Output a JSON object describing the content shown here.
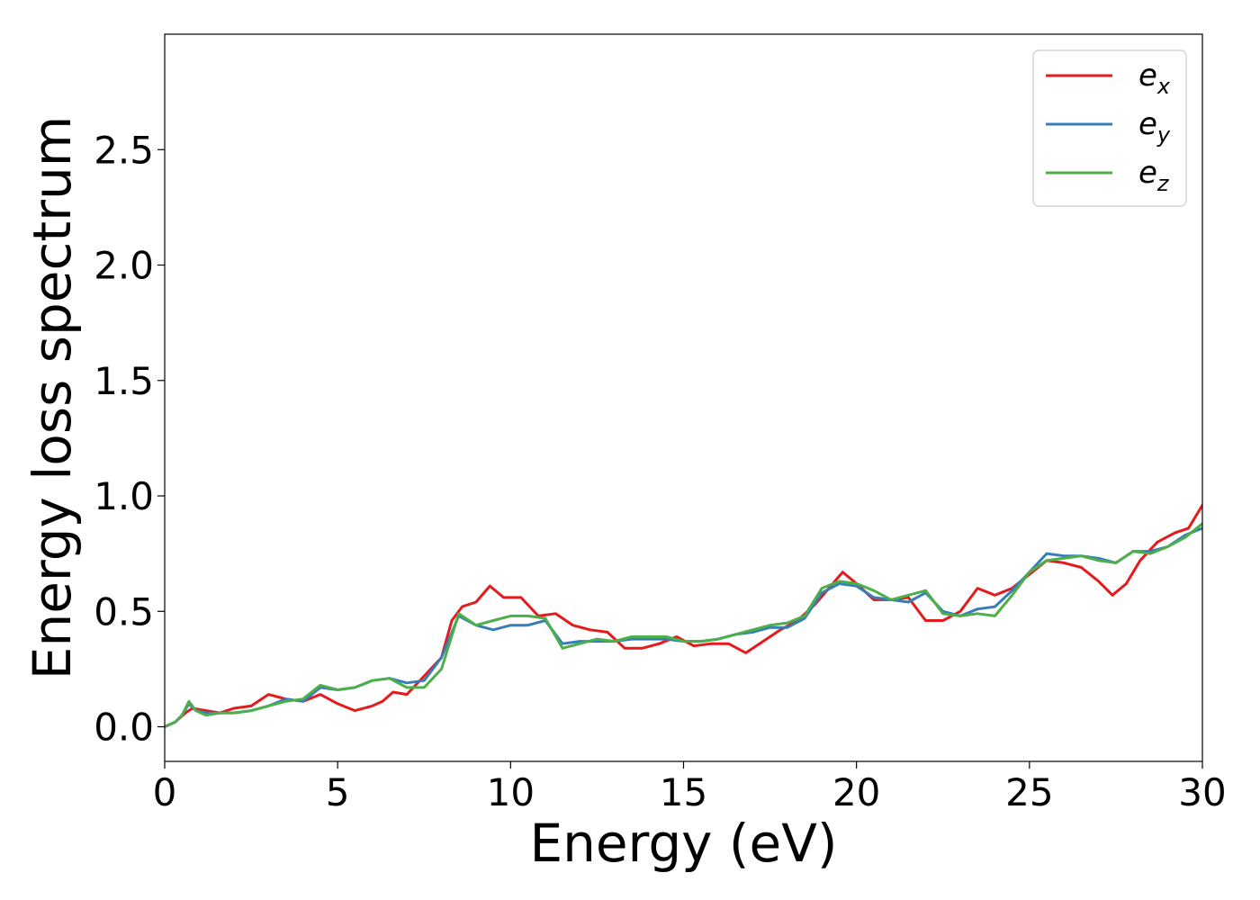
{
  "chart_data": {
    "type": "line",
    "xlabel": "Energy (eV)",
    "ylabel": "Energy loss spectrum",
    "xlim": [
      0,
      30
    ],
    "ylim": [
      -0.15,
      3.0
    ],
    "xticks": [
      "0",
      "5",
      "10",
      "15",
      "20",
      "25",
      "30"
    ],
    "yticks": [
      "0.0",
      "0.5",
      "1.0",
      "1.5",
      "2.0",
      "2.5"
    ],
    "grid": false,
    "legend_position": "top-right",
    "series": [
      {
        "name": "e_x",
        "label_base": "e",
        "label_sub": "x",
        "color": "#e41a1c",
        "x": [
          0,
          0.3,
          0.6,
          0.8,
          1.2,
          1.6,
          2.0,
          2.5,
          3.0,
          3.5,
          4.0,
          4.5,
          5.0,
          5.5,
          6.0,
          6.3,
          6.6,
          7.0,
          7.5,
          8.0,
          8.3,
          8.6,
          9.0,
          9.4,
          9.8,
          10.3,
          10.8,
          11.3,
          11.8,
          12.3,
          12.8,
          13.3,
          13.8,
          14.3,
          14.8,
          15.3,
          15.8,
          16.3,
          16.8,
          17.3,
          17.8,
          18.3,
          18.8,
          19.2,
          19.6,
          20.0,
          20.5,
          21.0,
          21.5,
          22.0,
          22.5,
          23.0,
          23.5,
          24.0,
          24.5,
          25.0,
          25.5,
          26.0,
          26.5,
          27.0,
          27.4,
          27.8,
          28.2,
          28.7,
          29.2,
          29.6,
          30.0
        ],
        "y": [
          0.0,
          0.02,
          0.06,
          0.08,
          0.07,
          0.06,
          0.08,
          0.09,
          0.14,
          0.12,
          0.11,
          0.14,
          0.1,
          0.07,
          0.09,
          0.11,
          0.15,
          0.14,
          0.22,
          0.3,
          0.46,
          0.52,
          0.54,
          0.61,
          0.56,
          0.56,
          0.48,
          0.49,
          0.44,
          0.42,
          0.41,
          0.34,
          0.34,
          0.36,
          0.39,
          0.35,
          0.36,
          0.36,
          0.32,
          0.37,
          0.42,
          0.46,
          0.53,
          0.6,
          0.67,
          0.62,
          0.55,
          0.55,
          0.56,
          0.46,
          0.46,
          0.5,
          0.6,
          0.57,
          0.6,
          0.66,
          0.72,
          0.71,
          0.69,
          0.63,
          0.57,
          0.62,
          0.72,
          0.8,
          0.84,
          0.86,
          0.96
        ]
      },
      {
        "name": "e_y",
        "label_base": "e",
        "label_sub": "y",
        "color": "#377eb8",
        "x": [
          0,
          0.3,
          0.5,
          0.7,
          0.9,
          1.2,
          1.6,
          2.0,
          2.5,
          3.0,
          3.5,
          4.0,
          4.5,
          5.0,
          5.5,
          6.0,
          6.5,
          7.0,
          7.5,
          8.0,
          8.5,
          9.0,
          9.5,
          10.0,
          10.5,
          11.0,
          11.5,
          12.0,
          12.5,
          13.0,
          13.5,
          14.0,
          14.5,
          15.0,
          15.5,
          16.0,
          16.5,
          17.0,
          17.5,
          18.0,
          18.5,
          19.0,
          19.5,
          20.0,
          20.5,
          21.0,
          21.5,
          22.0,
          22.5,
          23.0,
          23.5,
          24.0,
          24.5,
          25.0,
          25.5,
          26.0,
          26.5,
          27.0,
          27.5,
          28.0,
          28.5,
          29.0,
          29.5,
          30.0
        ],
        "y": [
          0.0,
          0.02,
          0.05,
          0.1,
          0.07,
          0.06,
          0.06,
          0.06,
          0.07,
          0.09,
          0.12,
          0.11,
          0.17,
          0.16,
          0.17,
          0.2,
          0.21,
          0.19,
          0.2,
          0.3,
          0.48,
          0.44,
          0.42,
          0.44,
          0.44,
          0.46,
          0.36,
          0.37,
          0.37,
          0.37,
          0.38,
          0.38,
          0.38,
          0.37,
          0.37,
          0.38,
          0.4,
          0.41,
          0.43,
          0.43,
          0.47,
          0.58,
          0.62,
          0.61,
          0.56,
          0.55,
          0.54,
          0.58,
          0.5,
          0.48,
          0.51,
          0.52,
          0.59,
          0.67,
          0.75,
          0.74,
          0.74,
          0.73,
          0.71,
          0.76,
          0.76,
          0.78,
          0.83,
          0.86
        ]
      },
      {
        "name": "e_z",
        "label_base": "e",
        "label_sub": "z",
        "color": "#4daf4a",
        "x": [
          0,
          0.3,
          0.5,
          0.7,
          0.9,
          1.2,
          1.6,
          2.0,
          2.5,
          3.0,
          3.5,
          4.0,
          4.5,
          5.0,
          5.5,
          6.0,
          6.5,
          7.0,
          7.5,
          8.0,
          8.5,
          9.0,
          9.5,
          10.0,
          10.5,
          11.0,
          11.5,
          12.0,
          12.5,
          13.0,
          13.5,
          14.0,
          14.5,
          15.0,
          15.5,
          16.0,
          16.5,
          17.0,
          17.5,
          18.0,
          18.5,
          19.0,
          19.5,
          20.0,
          20.5,
          21.0,
          21.5,
          22.0,
          22.5,
          23.0,
          23.5,
          24.0,
          24.5,
          25.0,
          25.5,
          26.0,
          26.5,
          27.0,
          27.5,
          28.0,
          28.5,
          29.0,
          29.5,
          30.0
        ],
        "y": [
          0.0,
          0.02,
          0.05,
          0.11,
          0.07,
          0.05,
          0.06,
          0.06,
          0.07,
          0.09,
          0.11,
          0.12,
          0.18,
          0.16,
          0.17,
          0.2,
          0.21,
          0.17,
          0.17,
          0.25,
          0.49,
          0.44,
          0.46,
          0.48,
          0.48,
          0.47,
          0.34,
          0.36,
          0.38,
          0.37,
          0.39,
          0.39,
          0.39,
          0.37,
          0.37,
          0.38,
          0.4,
          0.42,
          0.44,
          0.45,
          0.48,
          0.6,
          0.63,
          0.62,
          0.59,
          0.55,
          0.57,
          0.59,
          0.49,
          0.48,
          0.49,
          0.48,
          0.57,
          0.67,
          0.72,
          0.73,
          0.74,
          0.72,
          0.71,
          0.76,
          0.75,
          0.78,
          0.82,
          0.88
        ]
      }
    ]
  }
}
